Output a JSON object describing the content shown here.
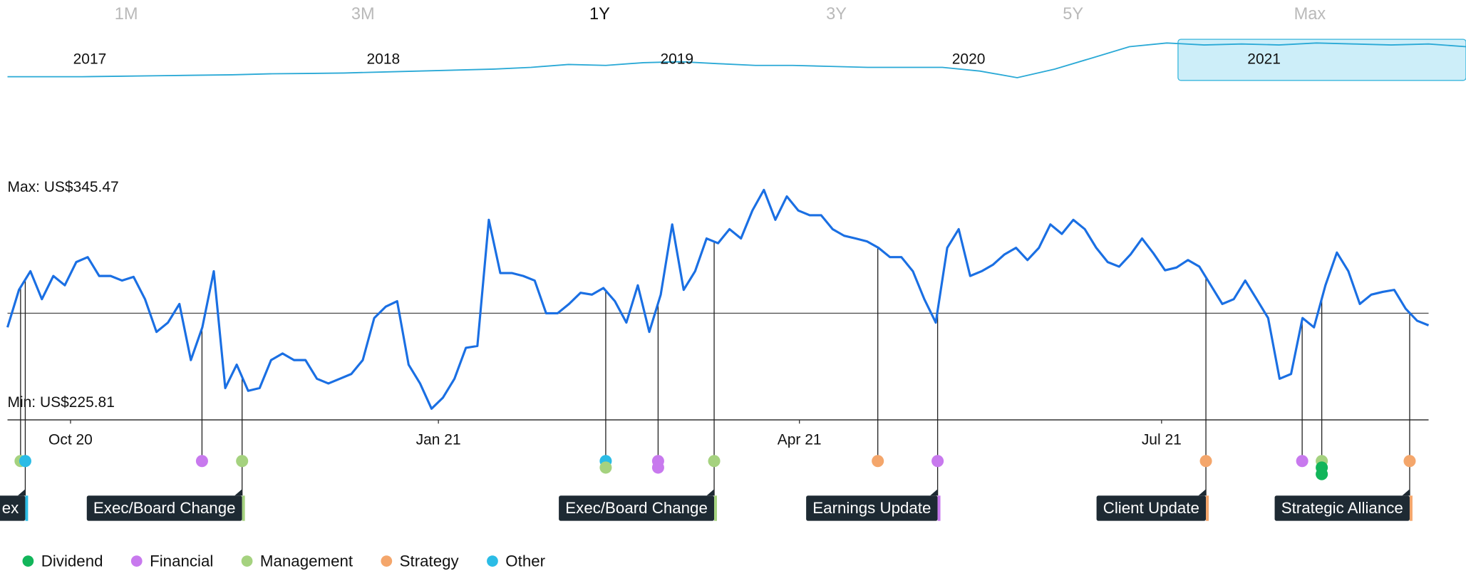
{
  "chart_data": {
    "type": "line",
    "range_buttons": [
      "1M",
      "3M",
      "1Y",
      "3Y",
      "5Y",
      "Max"
    ],
    "active_range": 2,
    "navigator": {
      "values": [
        113,
        113,
        113,
        116,
        119,
        122,
        125,
        131,
        133,
        136,
        142,
        148,
        154,
        160,
        171,
        189,
        183,
        200,
        206,
        194,
        183,
        183,
        177,
        171,
        171,
        171,
        148,
        107,
        160,
        229,
        299,
        322,
        310,
        316,
        310,
        322,
        316,
        310,
        316,
        299
      ],
      "ylim": [
        90,
        345
      ],
      "xlim": [
        0,
        39
      ],
      "years": [
        {
          "value": 2.2,
          "label": "2017"
        },
        {
          "value": 10.05,
          "label": "2018"
        },
        {
          "value": 17.9,
          "label": "2019"
        },
        {
          "value": 25.7,
          "label": "2020"
        },
        {
          "value": 33.6,
          "label": "2021"
        }
      ],
      "selection": [
        31.3,
        39
      ],
      "color": "#2aa9d6"
    },
    "max_label": "Max: US$345.47",
    "min_label": "Min: US$225.81",
    "color": "#1a6fe3",
    "values": [
      270.3,
      290.8,
      301,
      285.7,
      298.4,
      293.3,
      306,
      308.7,
      298.4,
      298.4,
      295.9,
      297.9,
      285.7,
      267.8,
      272.9,
      283.1,
      252.4,
      270.3,
      301,
      237.1,
      249.9,
      235.6,
      237.1,
      252.4,
      256,
      252.4,
      252.4,
      242.2,
      239.6,
      242.2,
      244.8,
      252.4,
      275.4,
      281.6,
      284.6,
      249.9,
      239.6,
      225.81,
      231.9,
      242.2,
      259.1,
      260.1,
      329.1,
      300,
      300,
      298.4,
      295.9,
      278,
      278,
      283.1,
      289.2,
      288.2,
      291.8,
      284.6,
      272.9,
      293.3,
      267.8,
      288.2,
      326.6,
      290.8,
      301,
      318.9,
      316.3,
      324,
      318.9,
      334.2,
      345.47,
      329.1,
      341.9,
      334.2,
      331.6,
      331.6,
      324,
      320.4,
      318.9,
      317.3,
      313.8,
      308.7,
      308.7,
      301,
      285.7,
      272.9,
      313.8,
      324,
      298.4,
      301,
      304.6,
      310.2,
      313.8,
      307.1,
      313.8,
      326.6,
      321.4,
      329.1,
      324,
      313.8,
      306,
      303.5,
      310.2,
      318.9,
      310.7,
      301.5,
      303,
      307.1,
      303.5,
      293.3,
      283.1,
      285.7,
      295.9,
      285.7,
      275.4,
      242.2,
      244.8,
      275.4,
      270.3,
      293.3,
      311.2,
      301,
      283.1,
      288.2,
      289.7,
      290.8,
      280.5,
      273.9,
      271.4
    ],
    "xlim": [
      0,
      124
    ],
    "xticks": [
      {
        "value": 5.5,
        "label": "Oct 20"
      },
      {
        "value": 37.6,
        "label": "Jan 21"
      },
      {
        "value": 69.1,
        "label": "Apr 21"
      },
      {
        "value": 100.7,
        "label": "Jul 21"
      }
    ],
    "ylim": [
      219.7,
      372.6
    ],
    "reference_line": 278,
    "legend": [
      {
        "name": "Dividend",
        "color": "#12b55a"
      },
      {
        "name": "Financial",
        "color": "#c879ee"
      },
      {
        "name": "Management",
        "color": "#a5d27f"
      },
      {
        "name": "Strategy",
        "color": "#f4a66b"
      },
      {
        "name": "Other",
        "color": "#2bbce6"
      }
    ],
    "events": [
      {
        "index": 1.14,
        "categories": [
          2
        ]
      },
      {
        "index": 1.55,
        "categories": [
          4
        ],
        "label": "ex"
      },
      {
        "index": 16.97,
        "categories": [
          1
        ]
      },
      {
        "index": 20.47,
        "categories": [
          2
        ],
        "label": "Exec/Board Change"
      },
      {
        "index": 52.2,
        "categories": [
          4,
          2
        ]
      },
      {
        "index": 56.77,
        "categories": [
          1,
          1
        ]
      },
      {
        "index": 61.66,
        "categories": [
          2
        ],
        "label": "Exec/Board Change"
      },
      {
        "index": 75.94,
        "categories": [
          3
        ]
      },
      {
        "index": 81.16,
        "categories": [
          1
        ],
        "label": "Earnings Update"
      },
      {
        "index": 104.57,
        "categories": [
          3
        ],
        "label": "Client Update"
      },
      {
        "index": 112.97,
        "categories": [
          1
        ]
      },
      {
        "index": 114.68,
        "categories": [
          2,
          0,
          0
        ]
      },
      {
        "index": 122.35,
        "categories": [
          3
        ],
        "label": "Strategic Alliance"
      }
    ]
  }
}
